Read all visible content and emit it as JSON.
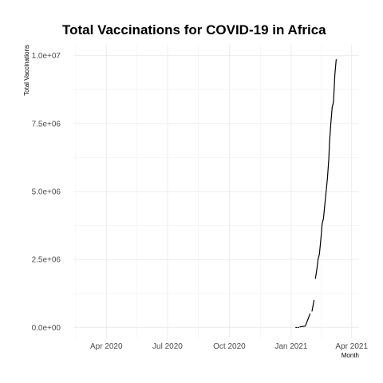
{
  "chart_data": {
    "type": "line",
    "title": "Total Vaccinations for COVID-19 in Africa",
    "xlabel": "Month",
    "ylabel": "Total Vaccinations",
    "x_type": "date",
    "xlim": [
      "2020-02-12",
      "2021-04-12"
    ],
    "ylim": [
      -400000,
      10400000
    ],
    "x_ticks": [
      {
        "date": "2020-04-01",
        "label": "Apr 2020"
      },
      {
        "date": "2020-07-01",
        "label": "Jul 2020"
      },
      {
        "date": "2020-10-01",
        "label": "Oct 2020"
      },
      {
        "date": "2021-01-01",
        "label": "Jan 2021"
      },
      {
        "date": "2021-04-01",
        "label": "Apr 2021"
      }
    ],
    "y_ticks": [
      {
        "value": 0,
        "label": "0.0e+00"
      },
      {
        "value": 2500000,
        "label": "2.5e+06"
      },
      {
        "value": 5000000,
        "label": "5.0e+06"
      },
      {
        "value": 7500000,
        "label": "7.5e+06"
      },
      {
        "value": 10000000,
        "label": "1.0e+07"
      }
    ],
    "grid": true,
    "legend": "none",
    "series": [
      {
        "color": "#000000",
        "segments": [
          [
            [
              "2021-01-08",
              0
            ],
            [
              "2021-01-09",
              0
            ]
          ],
          [
            [
              "2021-01-11",
              0
            ],
            [
              "2021-01-12",
              0
            ]
          ],
          [
            [
              "2021-01-14",
              20000
            ],
            [
              "2021-01-16",
              30000
            ],
            [
              "2021-01-19",
              40000
            ],
            [
              "2021-01-22",
              50000
            ],
            [
              "2021-01-26",
              300000
            ],
            [
              "2021-01-29",
              500000
            ]
          ],
          [
            [
              "2021-02-01",
              600000
            ],
            [
              "2021-02-04",
              1000000
            ]
          ],
          [
            [
              "2021-02-06",
              1800000
            ],
            [
              "2021-02-08",
              2100000
            ],
            [
              "2021-02-10",
              2500000
            ],
            [
              "2021-02-12",
              2700000
            ],
            [
              "2021-02-14",
              3200000
            ],
            [
              "2021-02-16",
              3800000
            ],
            [
              "2021-02-18",
              4000000
            ],
            [
              "2021-02-20",
              4500000
            ],
            [
              "2021-02-22",
              5000000
            ],
            [
              "2021-02-24",
              5500000
            ],
            [
              "2021-02-26",
              6200000
            ],
            [
              "2021-02-27",
              6800000
            ],
            [
              "2021-03-01",
              7500000
            ],
            [
              "2021-03-03",
              8100000
            ],
            [
              "2021-03-05",
              8300000
            ],
            [
              "2021-03-07",
              9300000
            ],
            [
              "2021-03-09",
              9850000
            ]
          ]
        ]
      }
    ]
  }
}
